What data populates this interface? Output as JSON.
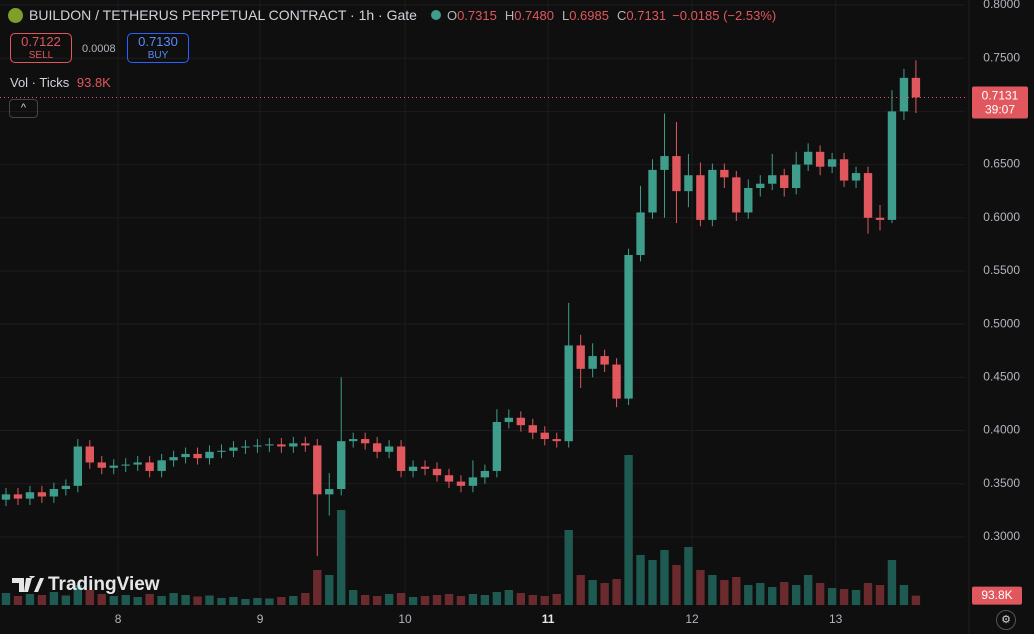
{
  "header": {
    "title": "BUILDON / TETHERUS PERPETUAL CONTRACT · 1h · Gate",
    "ohlc": [
      {
        "label": "O",
        "value": "0.7315"
      },
      {
        "label": "H",
        "value": "0.7480"
      },
      {
        "label": "L",
        "value": "0.6985"
      },
      {
        "label": "C",
        "value": "0.7131"
      }
    ],
    "change": "−0.0185 (−2.53%)",
    "sell": {
      "price": "0.7122",
      "label": "SELL"
    },
    "spread": "0.0008",
    "buy": {
      "price": "0.7130",
      "label": "BUY"
    },
    "volume_legend": {
      "label": "Vol · Ticks",
      "value": "93.8K"
    }
  },
  "watermark": "TradingView",
  "chart_data": {
    "type": "candlestick",
    "up_color": "#3f9d8b",
    "down_color": "#e0575e",
    "volume_up_color": "#1f5a52",
    "volume_down_color": "#6b2a2d",
    "open": [
      0.335,
      0.34,
      0.336,
      0.342,
      0.338,
      0.345,
      0.348,
      0.385,
      0.37,
      0.365,
      0.367,
      0.368,
      0.37,
      0.362,
      0.372,
      0.375,
      0.378,
      0.374,
      0.38,
      0.381,
      0.384,
      0.385,
      0.386,
      0.387,
      0.385,
      0.388,
      0.386,
      0.34,
      0.345,
      0.39,
      0.392,
      0.388,
      0.38,
      0.385,
      0.362,
      0.366,
      0.364,
      0.358,
      0.352,
      0.348,
      0.356,
      0.362,
      0.408,
      0.412,
      0.405,
      0.398,
      0.392,
      0.39,
      0.48,
      0.458,
      0.47,
      0.462,
      0.43,
      0.565,
      0.605,
      0.645,
      0.658,
      0.625,
      0.64,
      0.598,
      0.645,
      0.638,
      0.605,
      0.628,
      0.632,
      0.64,
      0.628,
      0.65,
      0.662,
      0.648,
      0.655,
      0.635,
      0.642,
      0.6,
      0.598,
      0.7,
      0.7315
    ],
    "high": [
      0.346,
      0.346,
      0.348,
      0.348,
      0.351,
      0.354,
      0.392,
      0.391,
      0.376,
      0.373,
      0.374,
      0.376,
      0.376,
      0.378,
      0.381,
      0.384,
      0.384,
      0.386,
      0.387,
      0.39,
      0.391,
      0.392,
      0.393,
      0.393,
      0.394,
      0.394,
      0.392,
      0.36,
      0.45,
      0.398,
      0.398,
      0.394,
      0.391,
      0.391,
      0.372,
      0.372,
      0.37,
      0.364,
      0.358,
      0.372,
      0.368,
      0.42,
      0.42,
      0.418,
      0.411,
      0.404,
      0.398,
      0.52,
      0.49,
      0.482,
      0.476,
      0.468,
      0.571,
      0.63,
      0.655,
      0.698,
      0.69,
      0.66,
      0.652,
      0.651,
      0.651,
      0.644,
      0.636,
      0.64,
      0.66,
      0.646,
      0.662,
      0.67,
      0.668,
      0.661,
      0.661,
      0.648,
      0.648,
      0.612,
      0.72,
      0.74,
      0.748
    ],
    "low": [
      0.329,
      0.33,
      0.33,
      0.332,
      0.332,
      0.339,
      0.342,
      0.364,
      0.359,
      0.359,
      0.361,
      0.362,
      0.356,
      0.356,
      0.366,
      0.369,
      0.368,
      0.368,
      0.374,
      0.375,
      0.378,
      0.379,
      0.38,
      0.379,
      0.379,
      0.38,
      0.282,
      0.32,
      0.339,
      0.384,
      0.382,
      0.374,
      0.374,
      0.356,
      0.356,
      0.358,
      0.352,
      0.346,
      0.342,
      0.342,
      0.35,
      0.356,
      0.402,
      0.399,
      0.392,
      0.386,
      0.384,
      0.384,
      0.44,
      0.45,
      0.455,
      0.422,
      0.424,
      0.559,
      0.599,
      0.6,
      0.595,
      0.61,
      0.592,
      0.592,
      0.628,
      0.597,
      0.599,
      0.62,
      0.626,
      0.62,
      0.622,
      0.644,
      0.64,
      0.642,
      0.629,
      0.628,
      0.585,
      0.588,
      0.595,
      0.692,
      0.6985
    ],
    "close": [
      0.34,
      0.336,
      0.342,
      0.338,
      0.345,
      0.348,
      0.385,
      0.37,
      0.365,
      0.367,
      0.368,
      0.37,
      0.362,
      0.372,
      0.375,
      0.378,
      0.374,
      0.38,
      0.381,
      0.384,
      0.385,
      0.386,
      0.387,
      0.385,
      0.388,
      0.386,
      0.34,
      0.345,
      0.39,
      0.392,
      0.388,
      0.38,
      0.385,
      0.362,
      0.366,
      0.364,
      0.358,
      0.352,
      0.348,
      0.356,
      0.362,
      0.408,
      0.412,
      0.405,
      0.398,
      0.392,
      0.39,
      0.48,
      0.458,
      0.47,
      0.462,
      0.43,
      0.565,
      0.605,
      0.645,
      0.658,
      0.625,
      0.64,
      0.598,
      0.645,
      0.638,
      0.605,
      0.628,
      0.632,
      0.64,
      0.628,
      0.65,
      0.662,
      0.648,
      0.655,
      0.635,
      0.642,
      0.6,
      0.598,
      0.7,
      0.7315,
      0.7131
    ],
    "volume": [
      120000,
      90000,
      110000,
      100000,
      130000,
      95000,
      200000,
      150000,
      110000,
      90000,
      100000,
      80000,
      110000,
      90000,
      120000,
      100000,
      85000,
      95000,
      70000,
      80000,
      60000,
      70000,
      65000,
      80000,
      90000,
      120000,
      350000,
      300000,
      950000,
      150000,
      100000,
      90000,
      110000,
      120000,
      80000,
      90000,
      100000,
      110000,
      90000,
      110000,
      100000,
      130000,
      150000,
      120000,
      100000,
      90000,
      110000,
      750000,
      300000,
      250000,
      220000,
      260000,
      1500000,
      500000,
      450000,
      550000,
      400000,
      580000,
      350000,
      300000,
      250000,
      280000,
      200000,
      220000,
      180000,
      230000,
      200000,
      300000,
      220000,
      170000,
      160000,
      150000,
      220000,
      200000,
      450000,
      200000,
      93800
    ],
    "last_volume_label": "93.8K",
    "countdown": "39:07",
    "ylim": [
      0.236,
      0.8
    ],
    "y2lim": [
      0,
      6000000
    ],
    "xlim": [
      -0.5,
      80.1
    ],
    "yticks": [
      {
        "value": 0.3,
        "label": "0.3000"
      },
      {
        "value": 0.35,
        "label": "0.3500"
      },
      {
        "value": 0.4,
        "label": "0.4000"
      },
      {
        "value": 0.45,
        "label": "0.4500"
      },
      {
        "value": 0.5,
        "label": "0.5000"
      },
      {
        "value": 0.55,
        "label": "0.5500"
      },
      {
        "value": 0.6,
        "label": "0.6000"
      },
      {
        "value": 0.65,
        "label": "0.6500"
      },
      {
        "value": 0.7,
        "label": "0.7000"
      },
      {
        "value": 0.75,
        "label": "0.7500"
      },
      {
        "value": 0.8,
        "label": "0.8000"
      }
    ],
    "xticks": [
      {
        "value": 9.36,
        "label": "8"
      },
      {
        "value": 21.22,
        "label": "9"
      },
      {
        "value": 33.33,
        "label": "10"
      },
      {
        "value": 45.28,
        "label": "11"
      },
      {
        "value": 57.3,
        "label": "12"
      },
      {
        "value": 69.3,
        "label": "13"
      }
    ],
    "grid": true
  }
}
